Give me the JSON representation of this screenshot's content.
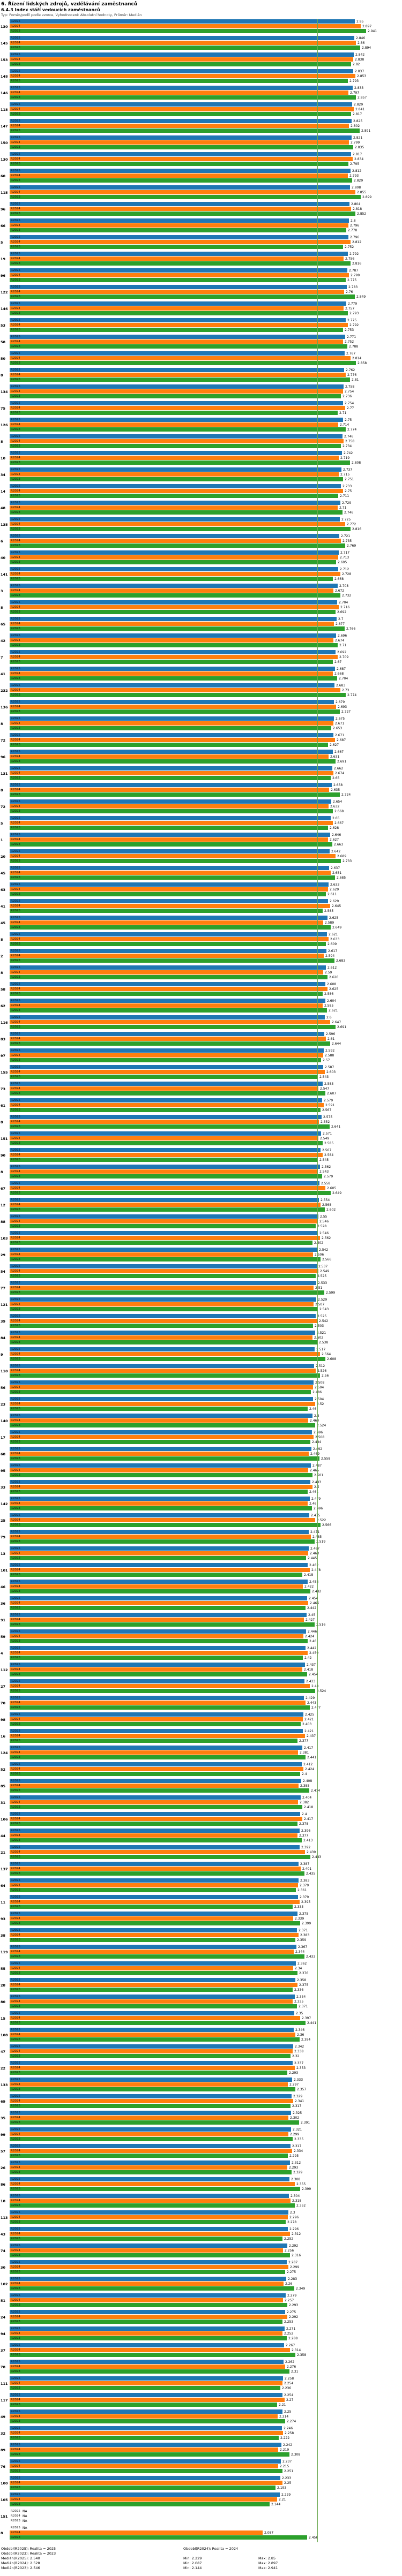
{
  "header": {
    "title": "6. Řízení lidských zdrojů, vzdělávání zaměstnanců",
    "subtitle": "6.4.3 Index stáří vedoucích zaměstnanců",
    "meta": "Typ: Poměr/podíl podle vzorce, Vyhodnocení: Absolutní hodnoty, Průměr: Medián"
  },
  "chart_data": {
    "type": "bar",
    "orientation": "horizontal",
    "value_axis": {
      "min": 0,
      "max": 3.0
    },
    "grid": false,
    "legend_position": "none",
    "na_label": "NA",
    "series": [
      {
        "name": "R2025",
        "color": "#1f77b4"
      },
      {
        "name": "R2024",
        "color": "#ff7f0e"
      },
      {
        "name": "R2023",
        "color": "#2ca02c"
      }
    ],
    "median_line": {
      "value": 2.54,
      "series": "R2025",
      "color": "#6aa84f"
    },
    "groups": [
      [
        "130",
        2.85,
        2.897,
        2.941
      ],
      [
        "145",
        2.846,
        2.86,
        2.894
      ],
      [
        "153",
        2.842,
        2.838,
        2.82
      ],
      [
        "148",
        2.837,
        2.853,
        2.793
      ],
      [
        "146",
        2.833,
        2.797,
        2.857
      ],
      [
        "118",
        2.829,
        2.841,
        2.817
      ],
      [
        "147",
        2.825,
        2.802,
        2.891
      ],
      [
        "150",
        2.821,
        2.799,
        2.835
      ],
      [
        "130",
        2.817,
        2.834,
        2.795
      ],
      [
        "60",
        2.812,
        2.793,
        2.829
      ],
      [
        "115",
        2.808,
        2.855,
        2.899
      ],
      [
        "96",
        2.804,
        2.818,
        2.852
      ],
      [
        "66",
        2.8,
        2.796,
        2.778
      ],
      [
        "5",
        2.796,
        2.812,
        2.752
      ],
      [
        "19",
        2.792,
        2.756,
        2.816
      ],
      [
        "96",
        2.787,
        2.799,
        2.775
      ],
      [
        "122",
        2.783,
        2.76,
        2.849
      ],
      [
        "146",
        2.779,
        2.757,
        2.793
      ],
      [
        "53",
        2.775,
        2.792,
        2.753
      ],
      [
        "58",
        2.771,
        2.752,
        2.788
      ],
      [
        "50",
        2.767,
        2.814,
        2.858
      ],
      [
        "8",
        2.762,
        2.776,
        2.81
      ],
      [
        "134",
        2.758,
        2.754,
        2.736
      ],
      [
        "75",
        2.754,
        2.77,
        2.71
      ],
      [
        "126",
        2.75,
        2.714,
        2.774
      ],
      [
        "8",
        2.746,
        2.758,
        2.734
      ],
      [
        "10",
        2.742,
        2.719,
        2.808
      ],
      [
        "34",
        2.737,
        2.715,
        2.751
      ],
      [
        "14",
        2.733,
        2.75,
        2.711
      ],
      [
        "48",
        2.729,
        2.71,
        2.746
      ],
      [
        "135",
        2.725,
        2.772,
        2.816
      ],
      [
        "6",
        2.721,
        2.735,
        2.769
      ],
      [
        "40",
        2.717,
        2.713,
        2.695
      ],
      [
        "141",
        2.712,
        2.728,
        2.668
      ],
      [
        "3",
        2.708,
        2.672,
        2.732
      ],
      [
        "8",
        2.704,
        2.716,
        2.692
      ],
      [
        "65",
        2.7,
        2.677,
        2.766
      ],
      [
        "42",
        2.696,
        2.674,
        2.71
      ],
      [
        "7",
        2.692,
        2.709,
        2.67
      ],
      [
        "41",
        2.687,
        2.668,
        2.704
      ],
      [
        "232",
        2.683,
        2.73,
        2.774
      ],
      [
        "136",
        2.679,
        2.693,
        2.727
      ],
      [
        "8",
        2.675,
        2.671,
        2.653
      ],
      [
        "72",
        2.671,
        2.687,
        2.627
      ],
      [
        "96",
        2.667,
        2.631,
        2.691
      ],
      [
        "131",
        2.662,
        2.674,
        2.65
      ],
      [
        "8",
        2.658,
        2.635,
        2.724
      ],
      [
        "72",
        2.654,
        2.632,
        2.668
      ],
      [
        "5",
        2.65,
        2.667,
        2.628
      ],
      [
        "1",
        2.646,
        2.627,
        2.663
      ],
      [
        "20",
        2.642,
        2.689,
        2.733
      ],
      [
        "45",
        2.637,
        2.651,
        2.685
      ],
      [
        "63",
        2.633,
        2.629,
        2.611
      ],
      [
        "41",
        2.629,
        2.645,
        2.585
      ],
      [
        "45",
        2.625,
        2.589,
        2.649
      ],
      [
        "8",
        2.621,
        2.633,
        2.609
      ],
      [
        "2",
        2.617,
        2.594,
        2.683
      ],
      [
        "8",
        2.612,
        2.59,
        2.626
      ],
      [
        "58",
        2.608,
        2.625,
        2.586
      ],
      [
        "62",
        2.604,
        2.585,
        2.621
      ],
      [
        "116",
        2.6,
        2.647,
        2.691
      ],
      [
        "83",
        2.596,
        2.61,
        2.644
      ],
      [
        "97",
        2.592,
        2.588,
        2.57
      ],
      [
        "155",
        2.587,
        2.603,
        2.543
      ],
      [
        "73",
        2.583,
        2.547,
        2.607
      ],
      [
        "61",
        2.579,
        2.591,
        2.567
      ],
      [
        "8",
        2.575,
        2.552,
        2.641
      ],
      [
        "151",
        2.571,
        2.549,
        2.585
      ],
      [
        "90",
        2.567,
        2.584,
        2.545
      ],
      [
        "8",
        2.562,
        2.543,
        2.579
      ],
      [
        "67",
        2.558,
        2.605,
        2.649
      ],
      [
        "12",
        2.554,
        2.568,
        2.602
      ],
      [
        "88",
        2.55,
        2.546,
        2.528
      ],
      [
        "103",
        2.546,
        2.562,
        2.502
      ],
      [
        "29",
        2.542,
        2.506,
        2.566
      ],
      [
        "54",
        2.537,
        2.549,
        2.525
      ],
      [
        "77",
        2.533,
        2.51,
        2.599
      ],
      [
        "121",
        2.529,
        2.507,
        2.543
      ],
      [
        "39",
        2.525,
        2.542,
        2.503
      ],
      [
        "84",
        2.521,
        2.502,
        2.538
      ],
      [
        "9",
        2.517,
        2.564,
        2.608
      ],
      [
        "110",
        2.512,
        2.526,
        2.56
      ],
      [
        "56",
        2.508,
        2.504,
        2.486
      ],
      [
        "23",
        2.504,
        2.52,
        2.46
      ],
      [
        "140",
        2.5,
        2.464,
        2.524
      ],
      [
        "17",
        2.496,
        2.508,
        2.484
      ],
      [
        "68",
        2.492,
        2.469,
        2.558
      ],
      [
        "95",
        2.487,
        2.465,
        2.501
      ],
      [
        "33",
        2.483,
        2.5,
        2.461
      ],
      [
        "142",
        2.479,
        2.46,
        2.496
      ],
      [
        "25",
        2.475,
        2.522,
        2.566
      ],
      [
        "79",
        2.471,
        2.485,
        2.519
      ],
      [
        "13",
        2.467,
        2.463,
        2.445
      ],
      [
        "101",
        2.462,
        2.478,
        2.418
      ],
      [
        "46",
        2.458,
        2.422,
        2.482
      ],
      [
        "36",
        2.454,
        2.466,
        2.442
      ],
      [
        "91",
        2.45,
        2.427,
        2.516
      ],
      [
        "59",
        2.446,
        2.424,
        2.46
      ],
      [
        "4",
        2.442,
        2.459,
        2.42
      ],
      [
        "112",
        2.437,
        2.418,
        2.454
      ],
      [
        "27",
        2.433,
        2.48,
        2.524
      ],
      [
        "70",
        2.429,
        2.443,
        2.477
      ],
      [
        "98",
        2.425,
        2.421,
        2.403
      ],
      [
        "16",
        2.421,
        2.437,
        2.377
      ],
      [
        "124",
        2.417,
        2.381,
        2.441
      ],
      [
        "52",
        2.412,
        2.424,
        2.4
      ],
      [
        "85",
        2.408,
        2.385,
        2.474
      ],
      [
        "31",
        2.404,
        2.382,
        2.418
      ],
      [
        "106",
        2.4,
        2.417,
        2.378
      ],
      [
        "44",
        2.396,
        2.377,
        2.413
      ],
      [
        "21",
        2.392,
        2.439,
        2.483
      ],
      [
        "137",
        2.387,
        2.401,
        2.435
      ],
      [
        "64",
        2.383,
        2.379,
        2.361
      ],
      [
        "11",
        2.379,
        2.395,
        2.335
      ],
      [
        "93",
        2.375,
        2.339,
        2.399
      ],
      [
        "38",
        2.371,
        2.383,
        2.359
      ],
      [
        "119",
        2.367,
        2.344,
        2.433
      ],
      [
        "55",
        2.362,
        2.34,
        2.376
      ],
      [
        "28",
        2.358,
        2.375,
        2.336
      ],
      [
        "80",
        2.354,
        2.335,
        2.371
      ],
      [
        "15",
        2.35,
        2.397,
        2.441
      ],
      [
        "108",
        2.346,
        2.36,
        2.394
      ],
      [
        "47",
        2.342,
        2.338,
        2.32
      ],
      [
        "22",
        2.337,
        2.353,
        2.293
      ],
      [
        "133",
        2.333,
        2.297,
        2.357
      ],
      [
        "69",
        2.329,
        2.341,
        2.317
      ],
      [
        "35",
        2.325,
        2.302,
        2.391
      ],
      [
        "99",
        2.321,
        2.299,
        2.335
      ],
      [
        "57",
        2.317,
        2.334,
        2.295
      ],
      [
        "26",
        2.312,
        2.293,
        2.329
      ],
      [
        "86",
        2.308,
        2.355,
        2.399
      ],
      [
        "18",
        2.304,
        2.318,
        2.352
      ],
      [
        "113",
        2.3,
        2.296,
        2.278
      ],
      [
        "43",
        2.296,
        2.312,
        2.252
      ],
      [
        "74",
        2.292,
        2.256,
        2.316
      ],
      [
        "30",
        2.287,
        2.299,
        2.275
      ],
      [
        "102",
        2.283,
        2.26,
        2.349
      ],
      [
        "51",
        2.279,
        2.257,
        2.293
      ],
      [
        "24",
        2.275,
        2.292,
        2.253
      ],
      [
        "94",
        2.271,
        2.252,
        2.288
      ],
      [
        "37",
        2.267,
        2.314,
        2.358
      ],
      [
        "78",
        2.262,
        2.276,
        2.31
      ],
      [
        "111",
        2.258,
        2.254,
        2.236
      ],
      [
        "117",
        2.254,
        2.27,
        2.21
      ],
      [
        "49",
        2.25,
        2.214,
        2.274
      ],
      [
        "32",
        2.246,
        2.258,
        2.222
      ],
      [
        "89",
        2.242,
        2.219,
        2.308
      ],
      [
        "76",
        2.237,
        2.215,
        2.251
      ],
      [
        "100",
        2.233,
        2.25,
        2.193
      ],
      [
        "105",
        2.229,
        2.21,
        2.144
      ],
      [
        "151",
        null,
        null,
        null
      ],
      [
        "8",
        null,
        2.087,
        2.456
      ]
    ]
  },
  "footer": {
    "period_lines": [
      {
        "left": "Období(R2025): Realita = 2025",
        "right": "Období(R2024): Realita = 2024"
      },
      {
        "left": "Období(R2023): Realita = 2023",
        "right": ""
      }
    ],
    "stat_lines": [
      {
        "median": "Medián(R2025): 2.540",
        "min": "Min: 2.229",
        "max": "Max: 2.85"
      },
      {
        "median": "Medián(R2024): 2.528",
        "min": "Min: 2.087",
        "max": "Max: 2.897"
      },
      {
        "median": "Medián(R2023): 2.546",
        "min": "Min: 2.144",
        "max": "Max: 2.941"
      }
    ]
  }
}
